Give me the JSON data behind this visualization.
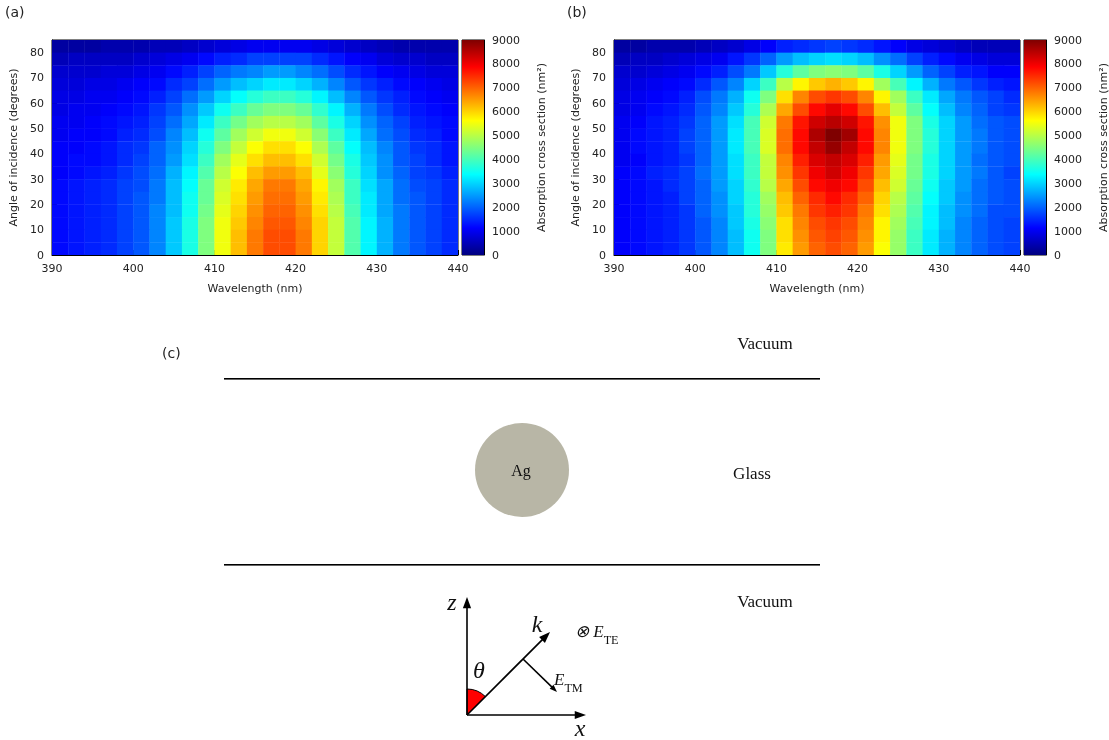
{
  "chart_data": [
    {
      "type": "heatmap",
      "title": "(a)",
      "xlabel": "Wavelength (nm)",
      "ylabel": "Angle of incidence (degrees)",
      "clabel": "Absorption cross section (nm²)",
      "x": [
        391,
        393,
        395,
        397,
        399,
        401,
        403,
        405,
        407,
        409,
        411,
        413,
        415,
        417,
        419,
        421,
        423,
        425,
        427,
        429,
        431,
        433,
        435,
        437,
        439
      ],
      "y": [
        82.5,
        77.5,
        72.5,
        67.5,
        62.5,
        57.5,
        52.5,
        47.5,
        42.5,
        37.5,
        32.5,
        27.5,
        22.5,
        17.5,
        12.5,
        7.5,
        2.5
      ],
      "cells": [
        [
          300,
          300,
          300,
          400,
          400,
          400,
          500,
          500,
          600,
          700,
          800,
          900,
          1000,
          1000,
          1000,
          1000,
          900,
          800,
          700,
          600,
          500,
          400,
          400,
          400,
          400
        ],
        [
          500,
          600,
          600,
          600,
          600,
          700,
          800,
          900,
          1000,
          1200,
          1400,
          1500,
          1700,
          1700,
          1700,
          1700,
          1500,
          1300,
          1100,
          1000,
          800,
          700,
          700,
          600,
          600
        ],
        [
          700,
          700,
          700,
          800,
          800,
          900,
          1000,
          1200,
          1400,
          1700,
          2000,
          2200,
          2300,
          2500,
          2500,
          2300,
          2100,
          1800,
          1500,
          1300,
          1100,
          1000,
          900,
          800,
          800
        ],
        [
          800,
          800,
          900,
          900,
          1000,
          1100,
          1200,
          1500,
          1700,
          2100,
          2500,
          2800,
          3000,
          3200,
          3200,
          3000,
          2700,
          2300,
          1900,
          1600,
          1400,
          1200,
          1100,
          1000,
          900
        ],
        [
          900,
          900,
          1000,
          1000,
          1100,
          1200,
          1400,
          1700,
          2100,
          2500,
          3000,
          3400,
          3700,
          3900,
          3900,
          3700,
          3300,
          2800,
          2300,
          1900,
          1600,
          1400,
          1200,
          1100,
          1000
        ],
        [
          900,
          1000,
          1000,
          1100,
          1200,
          1300,
          1600,
          1900,
          2400,
          2900,
          3500,
          3900,
          4300,
          4500,
          4500,
          4300,
          3800,
          3300,
          2700,
          2200,
          1800,
          1500,
          1300,
          1200,
          1100
        ],
        [
          1000,
          1000,
          1100,
          1200,
          1300,
          1400,
          1700,
          2100,
          2600,
          3200,
          3900,
          4400,
          4800,
          5000,
          5000,
          4800,
          4200,
          3600,
          3000,
          2400,
          2000,
          1700,
          1400,
          1300,
          1200
        ],
        [
          1000,
          1100,
          1100,
          1200,
          1400,
          1500,
          1800,
          2300,
          2800,
          3500,
          4200,
          4800,
          5200,
          5500,
          5500,
          5200,
          4600,
          3900,
          3200,
          2600,
          2100,
          1800,
          1500,
          1400,
          1200
        ],
        [
          1100,
          1100,
          1200,
          1300,
          1500,
          1600,
          2000,
          2400,
          3000,
          3700,
          4500,
          5100,
          5600,
          5900,
          5900,
          5600,
          4900,
          4200,
          3400,
          2800,
          2300,
          1900,
          1600,
          1500,
          1300
        ],
        [
          1100,
          1200,
          1200,
          1300,
          1500,
          1700,
          2000,
          2500,
          3100,
          3900,
          4800,
          5400,
          5900,
          6200,
          6200,
          5900,
          5200,
          4400,
          3600,
          2900,
          2400,
          1900,
          1700,
          1500,
          1300
        ],
        [
          1100,
          1200,
          1300,
          1400,
          1600,
          1800,
          2100,
          2700,
          3300,
          4100,
          5000,
          5600,
          6200,
          6500,
          6500,
          6200,
          5400,
          4600,
          3700,
          3000,
          2400,
          2000,
          1700,
          1600,
          1400
        ],
        [
          1200,
          1300,
          1400,
          1500,
          1700,
          1800,
          2200,
          2800,
          3400,
          4300,
          5200,
          5800,
          6400,
          6800,
          6800,
          6400,
          5700,
          4800,
          3900,
          3100,
          2600,
          2100,
          1800,
          1700,
          1500
        ],
        [
          1200,
          1300,
          1400,
          1500,
          1700,
          1900,
          2200,
          2800,
          3500,
          4300,
          5300,
          5900,
          6500,
          6900,
          6900,
          6500,
          5800,
          4900,
          3900,
          3200,
          2600,
          2100,
          1900,
          1700,
          1500
        ],
        [
          1200,
          1300,
          1400,
          1500,
          1700,
          1900,
          2300,
          2800,
          3500,
          4400,
          5400,
          6000,
          6600,
          7000,
          7000,
          6600,
          5900,
          5000,
          4000,
          3200,
          2600,
          2200,
          1900,
          1700,
          1500
        ],
        [
          1200,
          1300,
          1400,
          1500,
          1700,
          1900,
          2300,
          2900,
          3600,
          4500,
          5500,
          6100,
          6700,
          7100,
          7100,
          6700,
          6000,
          5100,
          4100,
          3300,
          2700,
          2200,
          1900,
          1700,
          1500
        ],
        [
          1200,
          1300,
          1400,
          1500,
          1700,
          1900,
          2300,
          2900,
          3600,
          4500,
          5500,
          6200,
          6800,
          7200,
          7200,
          6800,
          6000,
          5100,
          4100,
          3300,
          2700,
          2200,
          1900,
          1700,
          1500
        ],
        [
          1200,
          1300,
          1400,
          1500,
          1700,
          1900,
          2300,
          2900,
          3600,
          4500,
          5500,
          6200,
          6800,
          7200,
          7200,
          6800,
          6000,
          5100,
          4100,
          3300,
          2700,
          2200,
          1900,
          1700,
          1500
        ]
      ],
      "xlim": [
        390,
        440
      ],
      "ylim": [
        0,
        85
      ],
      "xticks": [
        390,
        400,
        410,
        420,
        430,
        440
      ],
      "yticks": [
        0,
        10,
        20,
        30,
        40,
        50,
        60,
        70,
        80
      ],
      "clim": [
        0,
        9000
      ],
      "cticks": [
        0,
        1000,
        2000,
        3000,
        4000,
        5000,
        6000,
        7000,
        8000,
        9000
      ]
    },
    {
      "type": "heatmap",
      "title": "(b)",
      "xlabel": "Wavelength (nm)",
      "ylabel": "Angle of incidence (degrees)",
      "clabel": "Absorption cross section (nm²)",
      "x": [
        391,
        393,
        395,
        397,
        399,
        401,
        403,
        405,
        407,
        409,
        411,
        413,
        415,
        417,
        419,
        421,
        423,
        425,
        427,
        429,
        431,
        433,
        435,
        437,
        439
      ],
      "y": [
        82.5,
        77.5,
        72.5,
        67.5,
        62.5,
        57.5,
        52.5,
        47.5,
        42.5,
        37.5,
        32.5,
        27.5,
        22.5,
        17.5,
        12.5,
        7.5,
        2.5
      ],
      "cells": [
        [
          300,
          300,
          400,
          400,
          400,
          500,
          600,
          700,
          900,
          1100,
          1400,
          1500,
          1600,
          1700,
          1600,
          1500,
          1300,
          1100,
          900,
          800,
          700,
          600,
          500,
          500,
          500
        ],
        [
          500,
          600,
          600,
          700,
          800,
          900,
          1000,
          1300,
          1600,
          2000,
          2500,
          2800,
          3000,
          3100,
          3000,
          2800,
          2400,
          2100,
          1700,
          1400,
          1200,
          1000,
          900,
          800,
          800
        ],
        [
          700,
          700,
          800,
          900,
          1000,
          1200,
          1400,
          1800,
          2200,
          2900,
          3700,
          4200,
          4500,
          4600,
          4500,
          4200,
          3600,
          3000,
          2500,
          2000,
          1700,
          1400,
          1300,
          1100,
          1100
        ],
        [
          800,
          900,
          1000,
          1100,
          1200,
          1500,
          1900,
          2300,
          3000,
          3900,
          5000,
          5700,
          6100,
          6300,
          6100,
          5700,
          4800,
          4000,
          3300,
          2700,
          2200,
          1900,
          1600,
          1400,
          1300
        ],
        [
          900,
          1000,
          1100,
          1200,
          1400,
          1800,
          2200,
          2700,
          3500,
          4500,
          5900,
          6700,
          7200,
          7400,
          7200,
          6700,
          5700,
          4800,
          3900,
          3200,
          2600,
          2200,
          1900,
          1700,
          1500
        ],
        [
          900,
          1000,
          1200,
          1300,
          1500,
          1900,
          2300,
          2900,
          3700,
          4900,
          6400,
          7200,
          7800,
          8100,
          7800,
          7200,
          6200,
          5100,
          4200,
          3400,
          2800,
          2300,
          2000,
          1700,
          1600
        ],
        [
          1000,
          1100,
          1300,
          1400,
          1600,
          2000,
          2500,
          3100,
          4000,
          5200,
          6800,
          7700,
          8300,
          8500,
          8300,
          7700,
          6600,
          5500,
          4500,
          3600,
          3000,
          2500,
          2100,
          1900,
          1800
        ],
        [
          1000,
          1200,
          1300,
          1400,
          1700,
          2000,
          2500,
          3200,
          4000,
          5300,
          6900,
          7800,
          8600,
          9000,
          8700,
          7800,
          6700,
          5500,
          4500,
          3700,
          3000,
          2500,
          2200,
          1900,
          1800
        ],
        [
          1000,
          1200,
          1300,
          1400,
          1700,
          2000,
          2500,
          3200,
          4000,
          5300,
          6900,
          7800,
          8400,
          8800,
          8400,
          7800,
          6700,
          5500,
          4500,
          3700,
          3000,
          2500,
          2200,
          1900,
          1800
        ],
        [
          1000,
          1100,
          1300,
          1400,
          1600,
          2000,
          2500,
          3100,
          3900,
          5100,
          6700,
          7600,
          8200,
          8400,
          8200,
          7600,
          6500,
          5400,
          4400,
          3600,
          3000,
          2500,
          2100,
          1900,
          1800
        ],
        [
          1100,
          1200,
          1400,
          1500,
          1700,
          2100,
          2500,
          3100,
          3900,
          5100,
          6600,
          7400,
          8000,
          8300,
          8000,
          7400,
          6400,
          5300,
          4400,
          3600,
          3000,
          2500,
          2200,
          1900,
          1700
        ],
        [
          1100,
          1200,
          1300,
          1500,
          1700,
          2000,
          2500,
          3000,
          3800,
          5000,
          6400,
          7200,
          7800,
          8000,
          7800,
          7200,
          6200,
          5200,
          4300,
          3500,
          2900,
          2500,
          2100,
          1900,
          1800
        ],
        [
          1100,
          1200,
          1300,
          1400,
          1700,
          2000,
          2400,
          3000,
          3700,
          4800,
          6200,
          7000,
          7500,
          7800,
          7500,
          7000,
          6000,
          5000,
          4200,
          3400,
          2900,
          2400,
          2100,
          1900,
          1800
        ],
        [
          1100,
          1200,
          1300,
          1400,
          1600,
          2000,
          2400,
          2900,
          3700,
          4700,
          6100,
          6800,
          7400,
          7600,
          7400,
          6800,
          5900,
          4900,
          4100,
          3300,
          2800,
          2400,
          2100,
          1800,
          1800
        ],
        [
          1100,
          1200,
          1300,
          1400,
          1600,
          1900,
          2300,
          2900,
          3600,
          4600,
          5900,
          6700,
          7200,
          7400,
          7200,
          6700,
          5700,
          4800,
          4000,
          3300,
          2800,
          2300,
          2000,
          1800,
          1700
        ],
        [
          1100,
          1200,
          1300,
          1400,
          1600,
          1900,
          2300,
          2800,
          3500,
          4500,
          5900,
          6600,
          7100,
          7300,
          7100,
          6600,
          5700,
          4700,
          3900,
          3200,
          2700,
          2300,
          2000,
          1800,
          1700
        ],
        [
          1100,
          1200,
          1300,
          1400,
          1600,
          1900,
          2300,
          2800,
          3500,
          4500,
          5800,
          6500,
          7000,
          7200,
          7000,
          6500,
          5600,
          4700,
          3900,
          3200,
          2700,
          2300,
          2000,
          1800,
          1700
        ]
      ],
      "xlim": [
        390,
        440
      ],
      "ylim": [
        0,
        85
      ],
      "xticks": [
        390,
        400,
        410,
        420,
        430,
        440
      ],
      "yticks": [
        0,
        10,
        20,
        30,
        40,
        50,
        60,
        70,
        80
      ],
      "clim": [
        0,
        9000
      ],
      "cticks": [
        0,
        1000,
        2000,
        3000,
        4000,
        5000,
        6000,
        7000,
        8000,
        9000
      ]
    },
    {
      "type": "other",
      "title": "(c)",
      "annotations": [
        "Vacuum",
        "Glass",
        "Vacuum",
        "Ag",
        "z",
        "x",
        "k",
        "θ",
        "E$_{TM}$",
        "⊗ E$_{TE}$"
      ]
    }
  ]
}
